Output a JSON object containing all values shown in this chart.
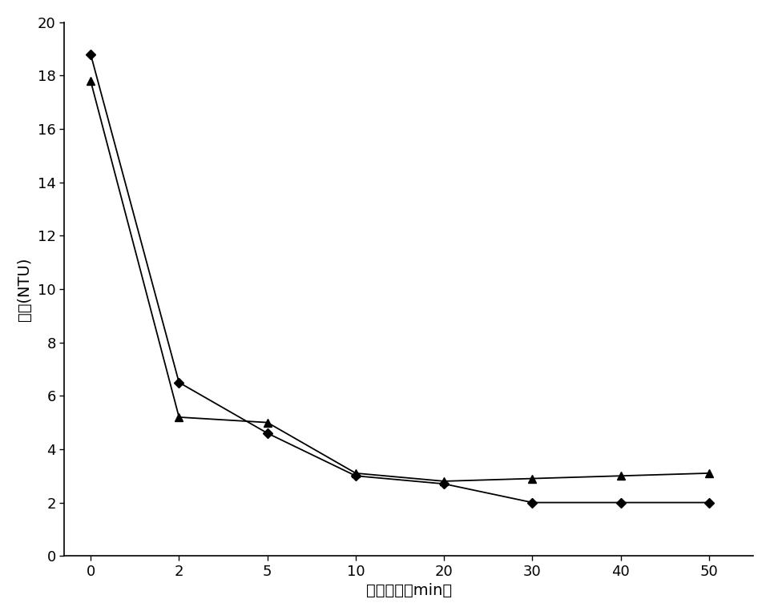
{
  "x_labels": [
    "0",
    "2",
    "5",
    "10",
    "20",
    "30",
    "40",
    "50"
  ],
  "x_positions": [
    0,
    1,
    2,
    3,
    4,
    5,
    6,
    7
  ],
  "series_diamond": [
    18.8,
    6.5,
    4.6,
    3.0,
    2.7,
    2.0,
    2.0,
    2.0
  ],
  "series_triangle": [
    17.8,
    5.2,
    5.0,
    3.1,
    2.8,
    2.9,
    3.0,
    3.1
  ],
  "xlabel": "沉淠时间（min）",
  "ylabel": "余浊(NTU)",
  "xlim": [
    -0.3,
    7.5
  ],
  "ylim": [
    0,
    20
  ],
  "yticks": [
    0,
    2,
    4,
    6,
    8,
    10,
    12,
    14,
    16,
    18,
    20
  ],
  "line_color": "#000000",
  "bg_color": "#ffffff",
  "axis_fontsize": 14,
  "tick_fontsize": 13
}
